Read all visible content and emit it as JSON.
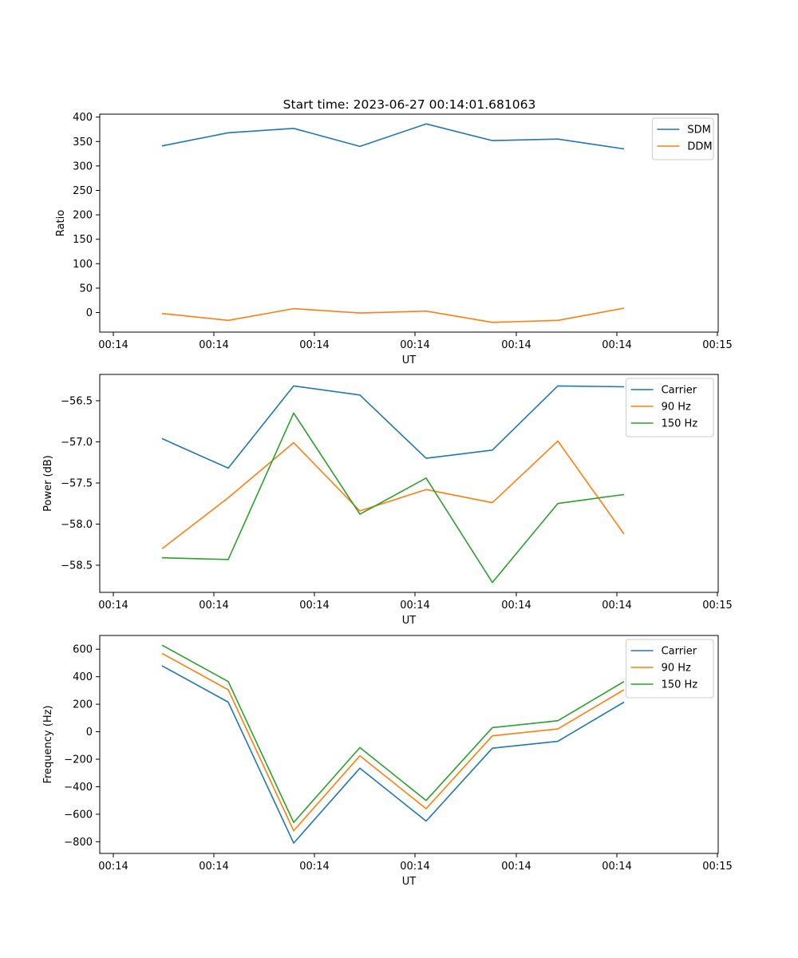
{
  "title": "Start time: 2023-06-27 00:14:01.681063",
  "colors": {
    "blue": "#1f77b4",
    "orange": "#ff7f0e",
    "green": "#2ca02c"
  },
  "chart_data": [
    {
      "type": "line",
      "ylabel": "Ratio",
      "xlabel": "UT",
      "legend": "top-right",
      "grid": false,
      "x_tick_labels": [
        "00:14",
        "00:14",
        "00:14",
        "00:14",
        "00:14",
        "00:14",
        "00:14",
        "00:15"
      ],
      "y_ticks": [
        0,
        50,
        100,
        150,
        200,
        250,
        300,
        350,
        400
      ],
      "y_tick_labels": [
        "0",
        "50",
        "100",
        "150",
        "200",
        "250",
        "300",
        "350",
        "400"
      ],
      "ylim": [
        -40,
        406
      ],
      "series": [
        {
          "name": "SDM",
          "color": "#1f77b4",
          "values": [
            341,
            368,
            377,
            340,
            386,
            352,
            355,
            335
          ]
        },
        {
          "name": "DDM",
          "color": "#ff7f0e",
          "values": [
            -2,
            -16,
            8,
            -1,
            3,
            -20,
            -16,
            9
          ]
        }
      ]
    },
    {
      "type": "line",
      "ylabel": "Power (dB)",
      "xlabel": "UT",
      "legend": "top-right",
      "grid": false,
      "x_tick_labels": [
        "00:14",
        "00:14",
        "00:14",
        "00:14",
        "00:14",
        "00:14",
        "00:14",
        "00:15"
      ],
      "y_ticks": [
        -58.5,
        -58.0,
        -57.5,
        -57.0,
        -56.5
      ],
      "y_tick_labels": [
        "−58.5",
        "−58.0",
        "−57.5",
        "−57.0",
        "−56.5"
      ],
      "ylim": [
        -58.83,
        -56.18
      ],
      "series": [
        {
          "name": "Carrier",
          "color": "#1f77b4",
          "values": [
            -56.96,
            -57.32,
            -56.32,
            -56.43,
            -57.2,
            -57.1,
            -56.32,
            -56.33
          ]
        },
        {
          "name": "90 Hz",
          "color": "#ff7f0e",
          "values": [
            -58.3,
            -57.68,
            -57.01,
            -57.84,
            -57.58,
            -57.74,
            -56.99,
            -58.12
          ]
        },
        {
          "name": "150 Hz",
          "color": "#2ca02c",
          "values": [
            -58.41,
            -58.43,
            -56.65,
            -57.88,
            -57.44,
            -58.71,
            -57.75,
            -57.64
          ]
        }
      ]
    },
    {
      "type": "line",
      "ylabel": "Frequency (Hz)",
      "xlabel": "UT",
      "legend": "top-right",
      "grid": false,
      "x_tick_labels": [
        "00:14",
        "00:14",
        "00:14",
        "00:14",
        "00:14",
        "00:14",
        "00:14",
        "00:15"
      ],
      "y_ticks": [
        -800,
        -600,
        -400,
        -200,
        0,
        200,
        400,
        600
      ],
      "y_tick_labels": [
        "−800",
        "−600",
        "−400",
        "−200",
        "0",
        "200",
        "400",
        "600"
      ],
      "ylim": [
        -885,
        700
      ],
      "series": [
        {
          "name": "Carrier",
          "color": "#1f77b4",
          "values": [
            480,
            215,
            -810,
            -265,
            -650,
            -120,
            -70,
            215
          ]
        },
        {
          "name": "90 Hz",
          "color": "#ff7f0e",
          "values": [
            570,
            305,
            -720,
            -175,
            -560,
            -30,
            20,
            305
          ]
        },
        {
          "name": "150 Hz",
          "color": "#2ca02c",
          "values": [
            630,
            365,
            -660,
            -115,
            -500,
            30,
            80,
            365
          ]
        }
      ]
    }
  ]
}
